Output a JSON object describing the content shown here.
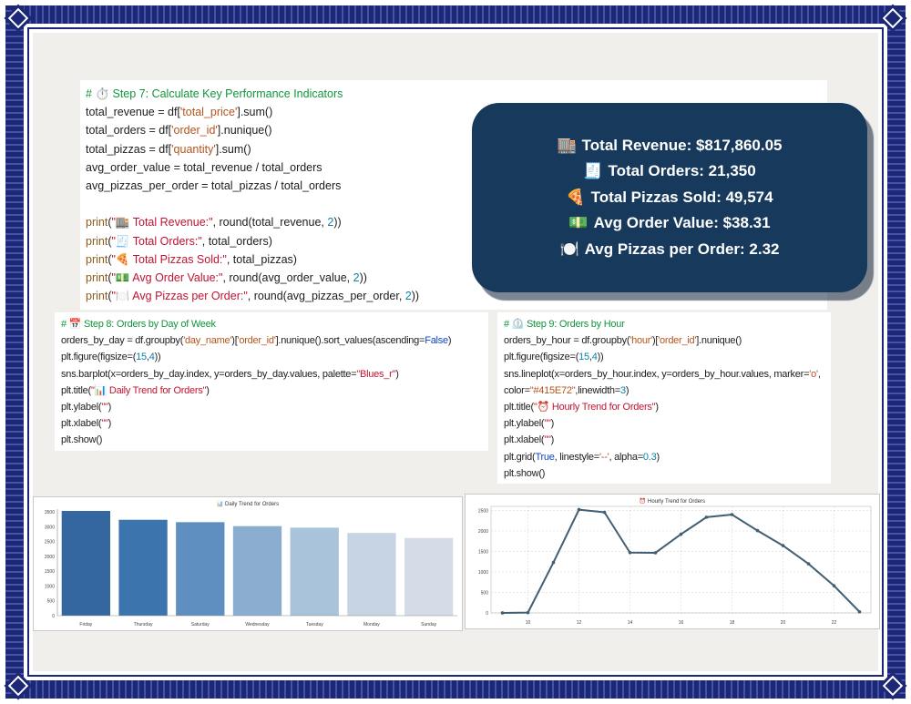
{
  "frame": {
    "border_color": "#1c2875",
    "background_color": "#f1efec"
  },
  "kpi_card": {
    "bg_color": "#17395c",
    "lines": [
      {
        "icon": "🏬",
        "text": "Total Revenue: $817,860.05"
      },
      {
        "icon": "🧾",
        "text": "Total Orders: 21,350"
      },
      {
        "icon": "🍕",
        "text": "Total Pizzas Sold: 49,574"
      },
      {
        "icon": "💵",
        "text": "Avg Order Value: $38.31"
      },
      {
        "icon": "🍽️",
        "text": "Avg Pizzas per Order: 2.32"
      }
    ]
  },
  "code_blocks": {
    "step7": {
      "lines": [
        [
          [
            "# ",
            "com"
          ],
          [
            "⏱️ ",
            "def"
          ],
          [
            "Step 7: Calculate Key Performance Indicators",
            "com"
          ]
        ],
        [
          [
            "total_revenue = df[",
            "def"
          ],
          [
            "'total_price'",
            "str"
          ],
          [
            "].sum()",
            "def"
          ]
        ],
        [
          [
            "total_orders = df[",
            "def"
          ],
          [
            "'order_id'",
            "str"
          ],
          [
            "].nunique()",
            "def"
          ]
        ],
        [
          [
            "total_pizzas = df[",
            "def"
          ],
          [
            "'quantity'",
            "str"
          ],
          [
            "].sum()",
            "def"
          ]
        ],
        [
          [
            "avg_order_value = total_revenue / total_orders",
            "def"
          ]
        ],
        [
          [
            "avg_pizzas_per_order = total_pizzas / total_orders",
            "def"
          ]
        ],
        [],
        [
          [
            "print",
            "fn"
          ],
          [
            "(",
            "def"
          ],
          [
            "\"🏬 Total Revenue:\"",
            "msg"
          ],
          [
            ", round(total_revenue, ",
            "def"
          ],
          [
            "2",
            "num"
          ],
          [
            "))",
            "def"
          ]
        ],
        [
          [
            "print",
            "fn"
          ],
          [
            "(",
            "def"
          ],
          [
            "\"🧾 Total Orders:\"",
            "msg"
          ],
          [
            ", total_orders)",
            "def"
          ]
        ],
        [
          [
            "print",
            "fn"
          ],
          [
            "(",
            "def"
          ],
          [
            "\"🍕 Total Pizzas Sold:\"",
            "msg"
          ],
          [
            ", total_pizzas)",
            "def"
          ]
        ],
        [
          [
            "print",
            "fn"
          ],
          [
            "(",
            "def"
          ],
          [
            "\"💵 Avg Order Value:\"",
            "msg"
          ],
          [
            ", round(avg_order_value, ",
            "def"
          ],
          [
            "2",
            "num"
          ],
          [
            "))",
            "def"
          ]
        ],
        [
          [
            "print",
            "fn"
          ],
          [
            "(",
            "def"
          ],
          [
            "\"🍽️ Avg Pizzas per Order:\"",
            "msg"
          ],
          [
            ", round(avg_pizzas_per_order, ",
            "def"
          ],
          [
            "2",
            "num"
          ],
          [
            "))",
            "def"
          ]
        ]
      ]
    },
    "step8": {
      "lines": [
        [
          [
            "# ",
            "com"
          ],
          [
            "📅 ",
            "def"
          ],
          [
            "Step 8: Orders by Day of Week",
            "com"
          ]
        ],
        [
          [
            "orders_by_day = df.groupby(",
            "def"
          ],
          [
            "'day_name'",
            "str"
          ],
          [
            ")[",
            "def"
          ],
          [
            "'order_id'",
            "str"
          ],
          [
            "].nunique().sort_values(ascending=",
            "def"
          ],
          [
            "False",
            "kw"
          ],
          [
            ")",
            "def"
          ]
        ],
        [
          [
            "plt.figure(figsize=(",
            "def"
          ],
          [
            "15",
            "num"
          ],
          [
            ",",
            "def"
          ],
          [
            "4",
            "num"
          ],
          [
            "))",
            "def"
          ]
        ],
        [
          [
            "sns.barplot(x=orders_by_day.index, y=orders_by_day.values, palette=",
            "def"
          ],
          [
            "\"Blues_r\"",
            "msg"
          ],
          [
            ")",
            "def"
          ]
        ],
        [
          [
            "plt.title(",
            "def"
          ],
          [
            "\"📊 Daily Trend for Orders\"",
            "msg"
          ],
          [
            ")",
            "def"
          ]
        ],
        [
          [
            "plt.ylabel(",
            "def"
          ],
          [
            "\"\"",
            "msg"
          ],
          [
            ")",
            "def"
          ]
        ],
        [
          [
            "plt.xlabel(",
            "def"
          ],
          [
            "\"\"",
            "msg"
          ],
          [
            ")",
            "def"
          ]
        ],
        [
          [
            "plt.show()",
            "def"
          ]
        ]
      ]
    },
    "step9": {
      "lines": [
        [
          [
            "# ",
            "com"
          ],
          [
            "⏲️ ",
            "def"
          ],
          [
            "Step 9: Orders by Hour",
            "com"
          ]
        ],
        [
          [
            "orders_by_hour = df.groupby(",
            "def"
          ],
          [
            "'hour'",
            "str"
          ],
          [
            ")[",
            "def"
          ],
          [
            "'order_id'",
            "str"
          ],
          [
            "].nunique()",
            "def"
          ]
        ],
        [
          [
            "plt.figure(figsize=(",
            "def"
          ],
          [
            "15",
            "num"
          ],
          [
            ",",
            "def"
          ],
          [
            "4",
            "num"
          ],
          [
            "))",
            "def"
          ]
        ],
        [
          [
            "sns.lineplot(x=orders_by_hour.index, y=orders_by_hour.values, marker=",
            "def"
          ],
          [
            "'o'",
            "str"
          ],
          [
            ",",
            "def"
          ]
        ],
        [
          [
            "color=",
            "def"
          ],
          [
            "\"#415E72\"",
            "str"
          ],
          [
            ",linewidth=",
            "def"
          ],
          [
            "3",
            "num"
          ],
          [
            ")",
            "def"
          ]
        ],
        [
          [
            "plt.title(",
            "def"
          ],
          [
            "\"⏰ Hourly Trend for Orders\"",
            "msg"
          ],
          [
            ")",
            "def"
          ]
        ],
        [
          [
            "plt.ylabel(",
            "def"
          ],
          [
            "\"\"",
            "msg"
          ],
          [
            ")",
            "def"
          ]
        ],
        [
          [
            "plt.xlabel(",
            "def"
          ],
          [
            "\"\"",
            "msg"
          ],
          [
            ")",
            "def"
          ]
        ],
        [
          [
            "plt.grid(",
            "def"
          ],
          [
            "True",
            "kw"
          ],
          [
            ", linestyle=",
            "def"
          ],
          [
            "'--'",
            "str"
          ],
          [
            ", alpha=",
            "def"
          ],
          [
            "0.3",
            "num"
          ],
          [
            ")",
            "def"
          ]
        ],
        [
          [
            "plt.show()",
            "def"
          ]
        ]
      ]
    }
  },
  "chart_data": [
    {
      "type": "bar",
      "title": "📊 Daily Trend for Orders",
      "categories": [
        "Friday",
        "Thursday",
        "Saturday",
        "Wednesday",
        "Tuesday",
        "Monday",
        "Sunday"
      ],
      "values": [
        3538,
        3239,
        3158,
        3024,
        2973,
        2794,
        2624
      ],
      "bar_colors": [
        "#34679f",
        "#3c74ad",
        "#5e8fc0",
        "#8aadd0",
        "#a9c3db",
        "#c6d4e4",
        "#d3dce7"
      ],
      "xlabel": "",
      "ylabel": "",
      "ylim": [
        0,
        3600
      ],
      "yticks": [
        0,
        500,
        1000,
        1500,
        2000,
        2500,
        3000,
        3500
      ],
      "grid": false,
      "legend": "none"
    },
    {
      "type": "line",
      "title": "⏰ Hourly Trend for Orders",
      "x": [
        9,
        10,
        11,
        12,
        13,
        14,
        15,
        16,
        17,
        18,
        19,
        20,
        21,
        22,
        23
      ],
      "y": [
        1,
        8,
        1231,
        2520,
        2455,
        1472,
        1468,
        1920,
        2336,
        2399,
        2009,
        1642,
        1198,
        663,
        28
      ],
      "line_color": "#415E72",
      "marker": "o",
      "xlabel": "",
      "ylabel": "",
      "ylim": [
        0,
        2600
      ],
      "yticks": [
        0,
        500,
        1000,
        1500,
        2000,
        2500
      ],
      "xticks": [
        10,
        12,
        14,
        16,
        18,
        20,
        22
      ],
      "grid": true,
      "legend": "none"
    }
  ]
}
